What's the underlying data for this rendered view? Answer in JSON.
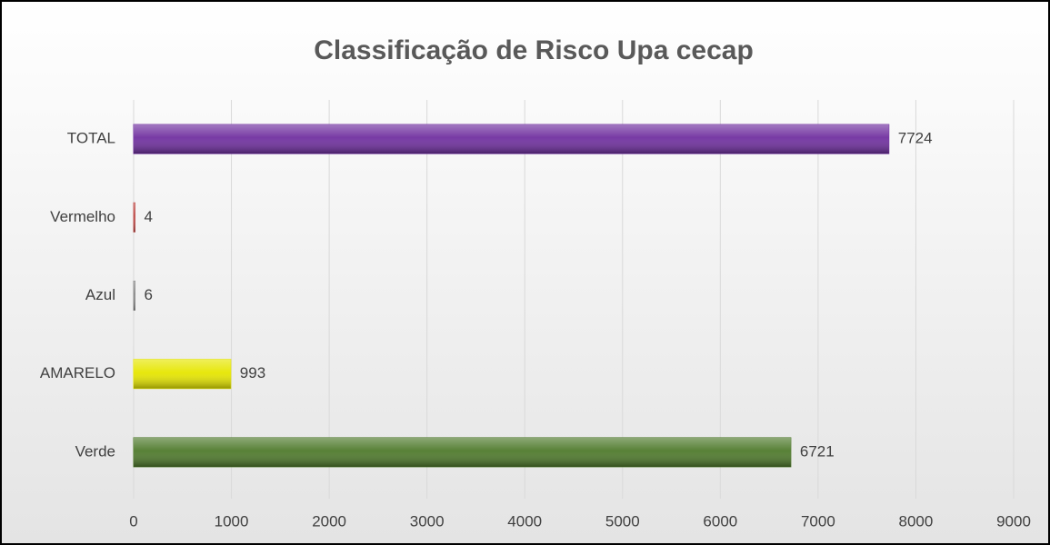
{
  "chart_data": {
    "type": "hbar",
    "title": "Classificação de Risco Upa  cecap",
    "categories": [
      "Verde",
      "AMARELO",
      "Azul",
      "Vermelho",
      "TOTAL"
    ],
    "values": [
      6721,
      993,
      6,
      4,
      7724
    ],
    "colors": [
      "#4f7a2c",
      "#e6e600",
      "#8c8c8c",
      "#c0504d",
      "#7030a0"
    ],
    "xlim": [
      0,
      9000
    ],
    "xticks": [
      0,
      1000,
      2000,
      3000,
      4000,
      5000,
      6000,
      7000,
      8000,
      9000
    ],
    "grid": true
  }
}
